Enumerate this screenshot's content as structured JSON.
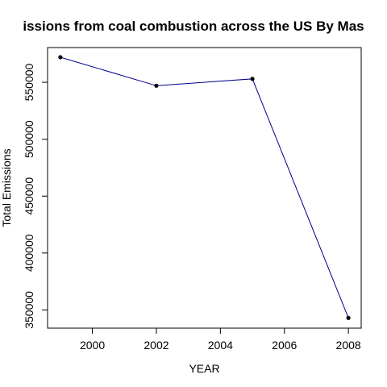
{
  "chart_data": {
    "type": "line",
    "title": "issions from coal combustion across the US By Mas",
    "xlabel": "YEAR",
    "ylabel": "Total Emissions",
    "x": [
      1999,
      2002,
      2005,
      2008
    ],
    "series": [
      {
        "values": [
          572000,
          547000,
          553000,
          343000
        ]
      }
    ],
    "xlim": [
      1998.6,
      2008.4
    ],
    "ylim": [
      334000,
      580500
    ],
    "x_ticks": [
      2000,
      2002,
      2004,
      2006,
      2008
    ],
    "y_ticks": [
      350000,
      400000,
      450000,
      500000,
      550000
    ],
    "x_tick_labels": [
      "2000",
      "2002",
      "2004",
      "2006",
      "2008"
    ],
    "y_tick_labels": [
      "350000",
      "400000",
      "450000",
      "500000",
      "550000"
    ],
    "line_color": "#00008b",
    "marker_color": "#000000",
    "grid": false,
    "legend": "none"
  }
}
